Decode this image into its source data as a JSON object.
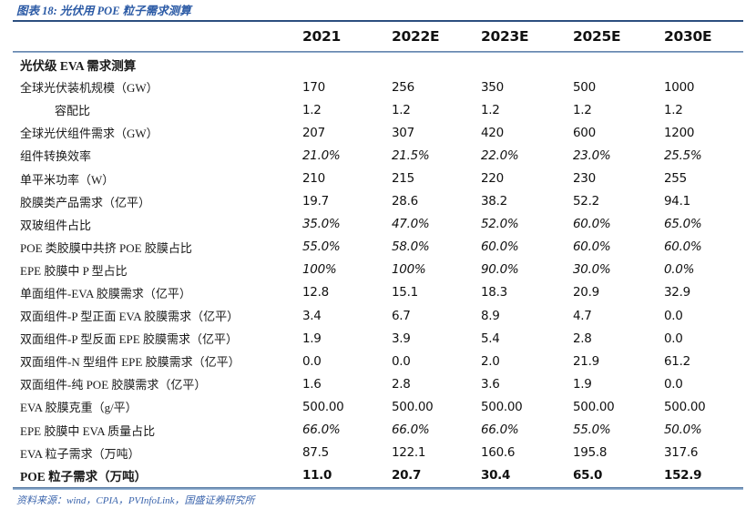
{
  "figure": {
    "title": "图表 18: 光伏用 POE 粒子需求测算",
    "source": "资料来源：wind，CPIA，PVInfoLink，国盛证券研究所"
  },
  "colors": {
    "title_blue": "#2b5aa5",
    "divider_dark": "#2d4f7f",
    "divider_light": "#aac6e2",
    "text": "#1a1a1a"
  },
  "table": {
    "columns": [
      "2021",
      "2022E",
      "2023E",
      "2025E",
      "2030E"
    ],
    "rows": [
      {
        "label": "光伏级 EVA 需求测算",
        "values": [
          "",
          "",
          "",
          "",
          ""
        ],
        "style": "section"
      },
      {
        "label": "全球光伏装机规模（GW）",
        "values": [
          "170",
          "256",
          "350",
          "500",
          "1000"
        ],
        "style": "normal"
      },
      {
        "label": "容配比",
        "values": [
          "1.2",
          "1.2",
          "1.2",
          "1.2",
          "1.2"
        ],
        "style": "indent"
      },
      {
        "label": "全球光伏组件需求（GW）",
        "values": [
          "207",
          "307",
          "420",
          "600",
          "1200"
        ],
        "style": "normal"
      },
      {
        "label": "组件转换效率",
        "values": [
          "21.0%",
          "21.5%",
          "22.0%",
          "23.0%",
          "25.5%"
        ],
        "style": "italic"
      },
      {
        "label": "单平米功率（W）",
        "values": [
          "210",
          "215",
          "220",
          "230",
          "255"
        ],
        "style": "normal"
      },
      {
        "label": "胶膜类产品需求（亿平）",
        "values": [
          "19.7",
          "28.6",
          "38.2",
          "52.2",
          "94.1"
        ],
        "style": "normal"
      },
      {
        "label": "双玻组件占比",
        "values": [
          "35.0%",
          "47.0%",
          "52.0%",
          "60.0%",
          "65.0%"
        ],
        "style": "italic"
      },
      {
        "label": "POE 类胶膜中共挤 POE 胶膜占比",
        "values": [
          "55.0%",
          "58.0%",
          "60.0%",
          "60.0%",
          "60.0%"
        ],
        "style": "italic"
      },
      {
        "label": "EPE 胶膜中 P 型占比",
        "values": [
          "100%",
          "100%",
          "90.0%",
          "30.0%",
          "0.0%"
        ],
        "style": "italic"
      },
      {
        "label": "单面组件-EVA 胶膜需求（亿平）",
        "values": [
          "12.8",
          "15.1",
          "18.3",
          "20.9",
          "32.9"
        ],
        "style": "normal"
      },
      {
        "label": "双面组件-P 型正面 EVA 胶膜需求（亿平）",
        "values": [
          "3.4",
          "6.7",
          "8.9",
          "4.7",
          "0.0"
        ],
        "style": "normal"
      },
      {
        "label": "双面组件-P 型反面 EPE 胶膜需求（亿平）",
        "values": [
          "1.9",
          "3.9",
          "5.4",
          "2.8",
          "0.0"
        ],
        "style": "normal"
      },
      {
        "label": "双面组件-N 型组件 EPE 胶膜需求（亿平）",
        "values": [
          "0.0",
          "0.0",
          "2.0",
          "21.9",
          "61.2"
        ],
        "style": "normal"
      },
      {
        "label": "双面组件-纯 POE 胶膜需求（亿平）",
        "values": [
          "1.6",
          "2.8",
          "3.6",
          "1.9",
          "0.0"
        ],
        "style": "normal"
      },
      {
        "label": "EVA 胶膜克重（g/平）",
        "values": [
          "500.00",
          "500.00",
          "500.00",
          "500.00",
          "500.00"
        ],
        "style": "normal"
      },
      {
        "label": "EPE 胶膜中 EVA 质量占比",
        "values": [
          "66.0%",
          "66.0%",
          "66.0%",
          "55.0%",
          "50.0%"
        ],
        "style": "italic"
      },
      {
        "label": "EVA 粒子需求（万吨）",
        "values": [
          "87.5",
          "122.1",
          "160.6",
          "195.8",
          "317.6"
        ],
        "style": "normal"
      },
      {
        "label": "POE 粒子需求（万吨）",
        "values": [
          "11.0",
          "20.7",
          "30.4",
          "65.0",
          "152.9"
        ],
        "style": "bold"
      }
    ]
  }
}
